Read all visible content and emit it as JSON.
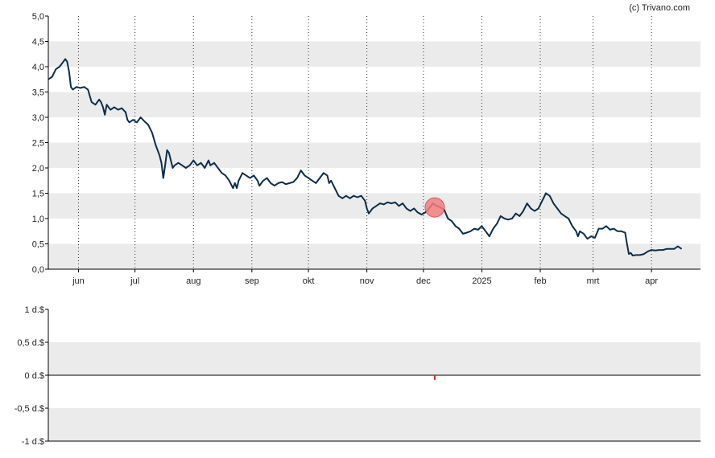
{
  "credit": "(c) Trivano.com",
  "colors": {
    "band": "#ebebeb",
    "line": "#0d2d4a",
    "marker_fill": "#f08080",
    "marker_stroke": "#e04040",
    "volume_bar": "#e02020",
    "axis": "#000000"
  },
  "chart_data": [
    {
      "type": "line",
      "ylim": [
        0,
        5
      ],
      "yticks": [
        "0,0",
        "0,5",
        "1,0",
        "1,5",
        "2,0",
        "2,5",
        "3,0",
        "3,5",
        "4,0",
        "4,5",
        "5,0"
      ],
      "grid": "alternating horizontal bands, dotted vertical lines at month starts",
      "months": [
        {
          "label": "jun",
          "day": 16
        },
        {
          "label": "jul",
          "day": 46
        },
        {
          "label": "aug",
          "day": 77
        },
        {
          "label": "sep",
          "day": 108
        },
        {
          "label": "okt",
          "day": 138
        },
        {
          "label": "nov",
          "day": 169
        },
        {
          "label": "dec",
          "day": 199
        },
        {
          "label": "2025",
          "day": 230
        },
        {
          "label": "feb",
          "day": 261
        },
        {
          "label": "mrt",
          "day": 289
        },
        {
          "label": "apr",
          "day": 320
        }
      ],
      "day_range": [
        0,
        346
      ],
      "points": [
        [
          0,
          3.75
        ],
        [
          2,
          3.8
        ],
        [
          4,
          3.95
        ],
        [
          6,
          4.0
        ],
        [
          8,
          4.1
        ],
        [
          9,
          4.15
        ],
        [
          10,
          4.1
        ],
        [
          11,
          3.9
        ],
        [
          12,
          3.6
        ],
        [
          13,
          3.55
        ],
        [
          15,
          3.6
        ],
        [
          17,
          3.58
        ],
        [
          19,
          3.6
        ],
        [
          21,
          3.55
        ],
        [
          23,
          3.3
        ],
        [
          25,
          3.25
        ],
        [
          27,
          3.35
        ],
        [
          28,
          3.3
        ],
        [
          29,
          3.2
        ],
        [
          30,
          3.05
        ],
        [
          31,
          3.25
        ],
        [
          33,
          3.15
        ],
        [
          35,
          3.2
        ],
        [
          37,
          3.15
        ],
        [
          39,
          3.18
        ],
        [
          41,
          3.1
        ],
        [
          42,
          2.95
        ],
        [
          43,
          2.9
        ],
        [
          45,
          2.95
        ],
        [
          47,
          2.9
        ],
        [
          49,
          3.0
        ],
        [
          51,
          2.92
        ],
        [
          53,
          2.85
        ],
        [
          55,
          2.7
        ],
        [
          57,
          2.45
        ],
        [
          59,
          2.25
        ],
        [
          60,
          2.1
        ],
        [
          61,
          1.8
        ],
        [
          62,
          2.05
        ],
        [
          63,
          2.35
        ],
        [
          64,
          2.3
        ],
        [
          65,
          2.15
        ],
        [
          66,
          2.0
        ],
        [
          67,
          2.05
        ],
        [
          69,
          2.1
        ],
        [
          71,
          2.05
        ],
        [
          73,
          2.0
        ],
        [
          75,
          2.05
        ],
        [
          77,
          2.15
        ],
        [
          79,
          2.05
        ],
        [
          81,
          2.1
        ],
        [
          83,
          2.0
        ],
        [
          85,
          2.15
        ],
        [
          86,
          2.05
        ],
        [
          88,
          2.1
        ],
        [
          90,
          2.0
        ],
        [
          92,
          1.9
        ],
        [
          94,
          1.85
        ],
        [
          96,
          1.75
        ],
        [
          98,
          1.6
        ],
        [
          99,
          1.7
        ],
        [
          100,
          1.6
        ],
        [
          101,
          1.75
        ],
        [
          103,
          1.9
        ],
        [
          105,
          1.85
        ],
        [
          107,
          1.8
        ],
        [
          109,
          1.85
        ],
        [
          111,
          1.75
        ],
        [
          112,
          1.65
        ],
        [
          114,
          1.75
        ],
        [
          116,
          1.8
        ],
        [
          118,
          1.7
        ],
        [
          120,
          1.65
        ],
        [
          122,
          1.7
        ],
        [
          124,
          1.72
        ],
        [
          126,
          1.68
        ],
        [
          128,
          1.7
        ],
        [
          130,
          1.72
        ],
        [
          132,
          1.8
        ],
        [
          134,
          1.95
        ],
        [
          136,
          1.85
        ],
        [
          138,
          1.8
        ],
        [
          140,
          1.75
        ],
        [
          142,
          1.7
        ],
        [
          144,
          1.8
        ],
        [
          146,
          1.9
        ],
        [
          148,
          1.85
        ],
        [
          149,
          1.7
        ],
        [
          150,
          1.75
        ],
        [
          152,
          1.6
        ],
        [
          154,
          1.45
        ],
        [
          156,
          1.4
        ],
        [
          158,
          1.45
        ],
        [
          160,
          1.4
        ],
        [
          162,
          1.45
        ],
        [
          164,
          1.42
        ],
        [
          166,
          1.45
        ],
        [
          168,
          1.35
        ],
        [
          169,
          1.2
        ],
        [
          170,
          1.1
        ],
        [
          172,
          1.2
        ],
        [
          174,
          1.25
        ],
        [
          176,
          1.3
        ],
        [
          178,
          1.28
        ],
        [
          180,
          1.32
        ],
        [
          182,
          1.3
        ],
        [
          184,
          1.32
        ],
        [
          186,
          1.25
        ],
        [
          188,
          1.3
        ],
        [
          190,
          1.2
        ],
        [
          192,
          1.15
        ],
        [
          194,
          1.2
        ],
        [
          196,
          1.12
        ],
        [
          198,
          1.08
        ],
        [
          200,
          1.12
        ],
        [
          202,
          1.2
        ],
        [
          204,
          1.3
        ],
        [
          206,
          1.25
        ],
        [
          208,
          1.22
        ],
        [
          210,
          1.18
        ],
        [
          212,
          1.0
        ],
        [
          214,
          0.95
        ],
        [
          216,
          0.85
        ],
        [
          218,
          0.8
        ],
        [
          220,
          0.7
        ],
        [
          222,
          0.72
        ],
        [
          224,
          0.75
        ],
        [
          226,
          0.8
        ],
        [
          228,
          0.78
        ],
        [
          230,
          0.85
        ],
        [
          232,
          0.75
        ],
        [
          234,
          0.65
        ],
        [
          236,
          0.8
        ],
        [
          238,
          0.9
        ],
        [
          240,
          1.05
        ],
        [
          242,
          1.0
        ],
        [
          244,
          0.98
        ],
        [
          246,
          1.0
        ],
        [
          248,
          1.1
        ],
        [
          250,
          1.05
        ],
        [
          252,
          1.15
        ],
        [
          254,
          1.3
        ],
        [
          256,
          1.2
        ],
        [
          258,
          1.15
        ],
        [
          260,
          1.2
        ],
        [
          262,
          1.35
        ],
        [
          264,
          1.5
        ],
        [
          266,
          1.45
        ],
        [
          268,
          1.3
        ],
        [
          270,
          1.2
        ],
        [
          272,
          1.1
        ],
        [
          274,
          1.05
        ],
        [
          276,
          1.0
        ],
        [
          278,
          0.85
        ],
        [
          280,
          0.75
        ],
        [
          281,
          0.65
        ],
        [
          282,
          0.75
        ],
        [
          284,
          0.7
        ],
        [
          286,
          0.6
        ],
        [
          288,
          0.65
        ],
        [
          290,
          0.62
        ],
        [
          292,
          0.8
        ],
        [
          294,
          0.8
        ],
        [
          296,
          0.85
        ],
        [
          298,
          0.78
        ],
        [
          300,
          0.8
        ],
        [
          302,
          0.75
        ],
        [
          304,
          0.75
        ],
        [
          306,
          0.72
        ],
        [
          307,
          0.5
        ],
        [
          308,
          0.3
        ],
        [
          309,
          0.32
        ],
        [
          310,
          0.27
        ],
        [
          312,
          0.28
        ],
        [
          314,
          0.28
        ],
        [
          316,
          0.3
        ],
        [
          318,
          0.35
        ],
        [
          320,
          0.38
        ],
        [
          322,
          0.37
        ],
        [
          324,
          0.38
        ],
        [
          326,
          0.38
        ],
        [
          328,
          0.4
        ],
        [
          330,
          0.4
        ],
        [
          332,
          0.4
        ],
        [
          334,
          0.45
        ],
        [
          336,
          0.4
        ]
      ],
      "highlight": {
        "day": 205,
        "value": 1.22
      }
    },
    {
      "type": "bar",
      "ylim": [
        -1,
        1
      ],
      "yticks": [
        "-1 d.$",
        "-0,5 d.$",
        "0 d.$",
        "0,5 d.$",
        "1 d.$"
      ],
      "bars": [
        {
          "day": 205,
          "value": -0.07
        }
      ]
    }
  ]
}
